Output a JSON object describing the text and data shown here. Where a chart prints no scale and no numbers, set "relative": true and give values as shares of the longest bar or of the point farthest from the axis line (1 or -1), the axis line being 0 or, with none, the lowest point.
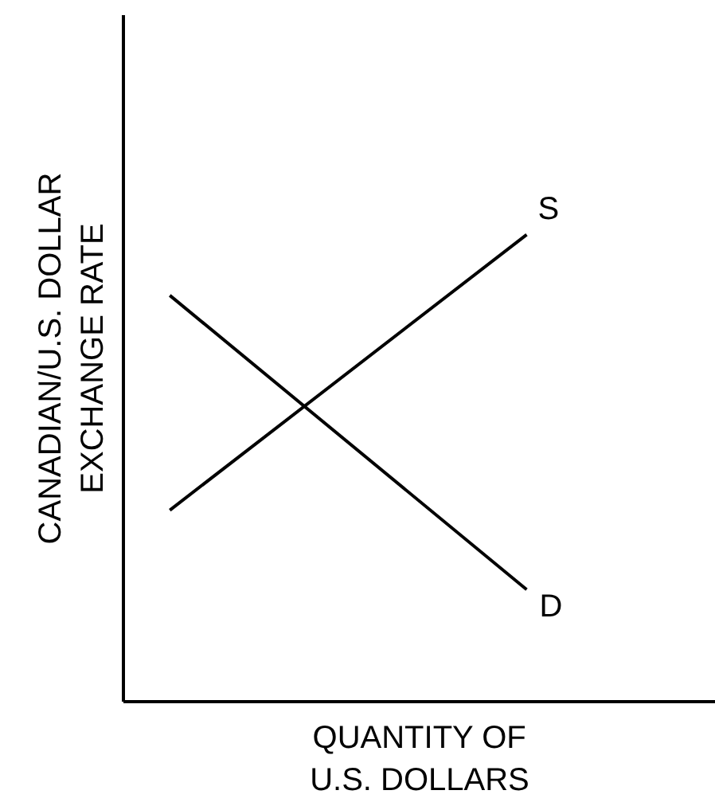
{
  "chart_data": {
    "type": "line",
    "relative": true,
    "xlabel": "QUANTITY OF\nU.S. DOLLARS",
    "ylabel": "CANADIAN/U.S. DOLLAR\nEXCHANGE RATE",
    "line_style": "solid",
    "categories": [
      null,
      null
    ],
    "series": [
      {
        "name": "S",
        "color": "#000000",
        "values": [
          0.41,
          1.0
        ]
      },
      {
        "name": "D",
        "color": "#000000",
        "values": [
          0.87,
          0.24
        ]
      }
    ]
  }
}
